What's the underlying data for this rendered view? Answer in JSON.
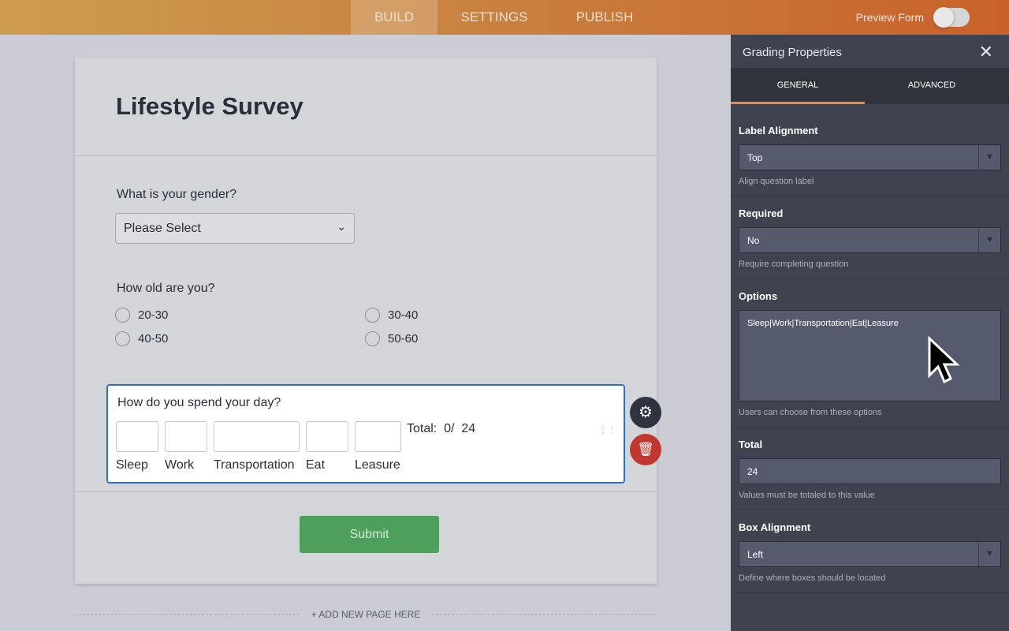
{
  "topbar": {
    "tabs": [
      "BUILD",
      "SETTINGS",
      "PUBLISH"
    ],
    "active": "BUILD",
    "preview_label": "Preview Form",
    "preview_on": false
  },
  "form": {
    "title": "Lifestyle Survey",
    "q1": {
      "label": "What is your gender?",
      "value": "Please Select"
    },
    "q2": {
      "label": "How old are you?",
      "options": [
        "20-30",
        "30-40",
        "40-50",
        "50-60"
      ]
    },
    "q3": {
      "label": "How do you spend your day?",
      "boxes": [
        "Sleep",
        "Work",
        "Transportation",
        "Eat",
        "Leasure"
      ],
      "total_label": "Total:",
      "total_value": "0/",
      "total_max": "24"
    },
    "submit": "Submit",
    "add_page": "+ ADD NEW PAGE HERE"
  },
  "panel": {
    "title": "Grading Properties",
    "tabs": [
      "GENERAL",
      "ADVANCED"
    ],
    "active_tab": "GENERAL",
    "label_alignment": {
      "label": "Label Alignment",
      "value": "Top",
      "hint": "Align question label"
    },
    "required": {
      "label": "Required",
      "value": "No",
      "hint": "Require completing question"
    },
    "options": {
      "label": "Options",
      "value": "Sleep|Work|Transportation|Eat|Leasure",
      "hint": "Users can choose from these options"
    },
    "total": {
      "label": "Total",
      "value": "24",
      "hint": "Values must be totaled to this value"
    },
    "box_alignment": {
      "label": "Box Alignment",
      "value": "Left",
      "hint": "Define where boxes should be located"
    }
  },
  "colors": {
    "accent": "#f08a43",
    "selected": "#2a6fd6",
    "submit": "#4e9e5c",
    "delete": "#c0372f"
  }
}
